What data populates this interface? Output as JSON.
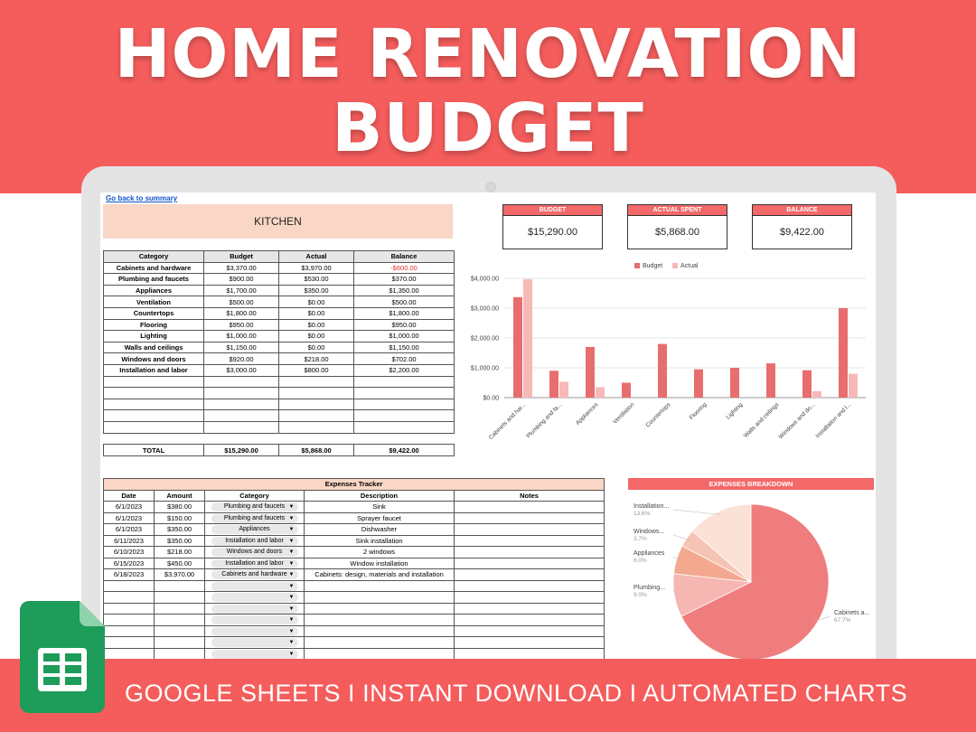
{
  "title_line1": "HOME RENOVATION",
  "title_line2": "BUDGET",
  "footer": "GOOGLE SHEETS I INSTANT DOWNLOAD I AUTOMATED CHARTS",
  "sheet": {
    "back_link": "Go back to summary",
    "section": "KITCHEN",
    "columns": [
      "Category",
      "Budget",
      "Actual",
      "Balance"
    ],
    "rows": [
      [
        "Cabinets and hardware",
        "$3,370.00",
        "$3,970.00",
        "-$600.00"
      ],
      [
        "Plumbing and faucets",
        "$900.00",
        "$530.00",
        "$370.00"
      ],
      [
        "Appliances",
        "$1,700.00",
        "$350.00",
        "$1,350.00"
      ],
      [
        "Ventilation",
        "$500.00",
        "$0.00",
        "$500.00"
      ],
      [
        "Countertops",
        "$1,800.00",
        "$0.00",
        "$1,800.00"
      ],
      [
        "Flooring",
        "$950.00",
        "$0.00",
        "$950.00"
      ],
      [
        "Lighting",
        "$1,000.00",
        "$0.00",
        "$1,000.00"
      ],
      [
        "Walls and ceilings",
        "$1,150.00",
        "$0.00",
        "$1,150.00"
      ],
      [
        "Windows and doors",
        "$920.00",
        "$218.00",
        "$702.00"
      ],
      [
        "Installation and labor",
        "$3,000.00",
        "$800.00",
        "$2,200.00"
      ]
    ],
    "total": [
      "TOTAL",
      "$15,290.00",
      "$5,868.00",
      "$9,422.00"
    ]
  },
  "kpis": [
    {
      "label": "BUDGET",
      "value": "$15,290.00"
    },
    {
      "label": "ACTUAL SPENT",
      "value": "$5,868.00"
    },
    {
      "label": "BALANCE",
      "value": "$9,422.00"
    }
  ],
  "expenses": {
    "title": "Expenses Tracker",
    "columns": [
      "Date",
      "Amount",
      "Category",
      "Description",
      "Notes"
    ],
    "rows": [
      [
        "6/1/2023",
        "$380.00",
        "Plumbing and faucets",
        "Sink",
        ""
      ],
      [
        "6/1/2023",
        "$150.00",
        "Plumbing and faucets",
        "Sprayer faucet",
        ""
      ],
      [
        "6/1/2023",
        "$350.00",
        "Appliances",
        "Dishwasher",
        ""
      ],
      [
        "6/11/2023",
        "$350.00",
        "Installation and labor",
        "Sink installation",
        ""
      ],
      [
        "6/10/2023",
        "$218.00",
        "Windows and doors",
        "2 windows",
        ""
      ],
      [
        "6/15/2023",
        "$450.00",
        "Installation and labor",
        "Window installation",
        ""
      ],
      [
        "6/18/2023",
        "$3,970.00",
        "Cabinets and hardware",
        "Cabinets: design, materials and installation",
        ""
      ]
    ]
  },
  "pie_title": "EXPENSES BREAKDOWN",
  "chart_data": [
    {
      "type": "bar",
      "categories": [
        "Cabinets and har...",
        "Plumbing and fa...",
        "Appliances",
        "Ventilation",
        "Countertops",
        "Flooring",
        "Lighting",
        "Walls and ceilings",
        "Windows and do...",
        "Installation and l..."
      ],
      "series": [
        {
          "name": "Budget",
          "color": "#e86d6f",
          "values": [
            3370,
            900,
            1700,
            500,
            1800,
            950,
            1000,
            1150,
            920,
            3000
          ]
        },
        {
          "name": "Actual",
          "color": "#f6b9b8",
          "values": [
            3970,
            530,
            350,
            0,
            0,
            0,
            0,
            0,
            218,
            800
          ]
        }
      ],
      "ylim": [
        0,
        4000
      ],
      "yticks": [
        "$0.00",
        "$1,000.00",
        "$2,000.00",
        "$3,000.00",
        "$4,000.00"
      ],
      "legend": "top-center"
    },
    {
      "type": "pie",
      "title": "EXPENSES BREAKDOWN",
      "slices": [
        {
          "label": "Cabinets a...",
          "pct": "67.7%",
          "value": 67.7,
          "color": "#ef7d7d"
        },
        {
          "label": "Plumbing...",
          "pct": "9.0%",
          "value": 9.0,
          "color": "#f6b6b1"
        },
        {
          "label": "Appliances",
          "pct": "6.0%",
          "value": 6.0,
          "color": "#f2a98f"
        },
        {
          "label": "Windows...",
          "pct": "3.7%",
          "value": 3.7,
          "color": "#f6c4b4"
        },
        {
          "label": "Installation...",
          "pct": "13.6%",
          "value": 13.6,
          "color": "#fbe1d6"
        }
      ]
    }
  ]
}
